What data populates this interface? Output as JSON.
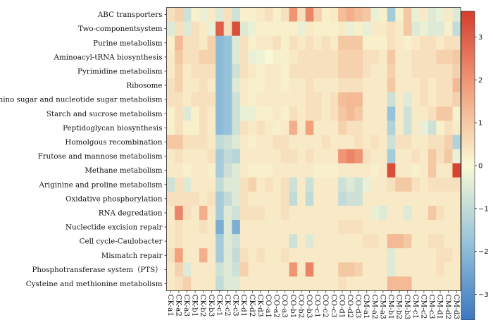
{
  "chart_data": {
    "type": "heatmap",
    "rows": [
      "ABC transporters",
      "Two-componentsystem",
      "Purine metabolism",
      "Aminoacyl-tRNA biosynthesis",
      "Pyrimidine metabolism",
      "Ribosome",
      "Amino sugar and nucleotide sugar metabolism",
      "Starch and sucrose metabolism",
      "Peptidoglycan biosynthesis",
      "Homolgous recombination",
      "Frutose and mannose metabolism",
      "Methane metabolism",
      "Ariginine and proline metabolism",
      "Oxidative phosphorylation",
      "RNA degredation",
      "Nuclectide excision repair",
      "Cell cycle-Caulobacter",
      "Mismatch repair",
      "Phosphotransferase system（PTS）",
      "Cysteine and methionine metabolism"
    ],
    "columns": [
      "CK-a1",
      "CK-a2",
      "CK-a3",
      "CK-b1",
      "CK-b2",
      "CK-b3",
      "CK-c1",
      "CK-c2",
      "CK-c3",
      "CK-d1",
      "CK-d2",
      "CK-d3",
      "CO-a1",
      "CO-a2",
      "CO-a3",
      "CO-b1",
      "CO-b2",
      "CO-b3",
      "CO-c1",
      "CO-c2",
      "CO-c3",
      "CO-d1",
      "CO-d2",
      "CO-d3",
      "CM-a1",
      "CM-a2",
      "CM-a3",
      "CM-b1",
      "CM-b2",
      "CM-b3",
      "CM-c1",
      "CM-c2",
      "CM-c3",
      "CM-d1",
      "CM-d2",
      "CM-d3"
    ],
    "values": [
      [
        0.5,
        0.8,
        -0.8,
        0.2,
        -0.3,
        0.3,
        -0.5,
        0.5,
        -0.8,
        0.2,
        0.2,
        0.3,
        0.5,
        0.2,
        0.5,
        2.0,
        0.5,
        2.3,
        0.8,
        0.2,
        0.3,
        1.2,
        1.5,
        1.2,
        1.0,
        -0.3,
        0.2,
        -1.5,
        0.2,
        1.0,
        -0.3,
        0.3,
        -0.5,
        -0.3,
        0.3,
        -0.5
      ],
      [
        -0.5,
        0.5,
        -0.5,
        0.5,
        0.3,
        -0.3,
        3.0,
        0.5,
        3.3,
        -0.5,
        -0.3,
        0.2,
        0.2,
        0.2,
        0.2,
        0.2,
        -0.3,
        0.3,
        0.2,
        0.2,
        0.2,
        0.3,
        -0.3,
        0.2,
        -0.3,
        0.3,
        0.3,
        0.5,
        0.3,
        1.0,
        -0.5,
        -0.3,
        -0.5,
        -0.5,
        0.2,
        -1.0
      ],
      [
        0.2,
        1.3,
        0.5,
        0.5,
        0.3,
        0.8,
        -2.0,
        -1.8,
        -0.5,
        0.5,
        0.2,
        0.3,
        0.3,
        0.5,
        0.2,
        0.5,
        0.3,
        0.5,
        0.3,
        0.5,
        0.3,
        1.0,
        1.0,
        1.0,
        0.2,
        0.2,
        0.2,
        0.5,
        0.3,
        0.2,
        0.3,
        0.5,
        0.5,
        0.3,
        0.5,
        0.5
      ],
      [
        0.3,
        1.0,
        0.5,
        0.5,
        0.8,
        0.8,
        -2.0,
        -1.8,
        -0.5,
        0.5,
        -0.3,
        -0.2,
        0.0,
        0.2,
        0.2,
        0.3,
        0.5,
        0.5,
        0.5,
        0.5,
        0.5,
        0.8,
        0.8,
        0.8,
        0.5,
        0.5,
        0.3,
        1.0,
        0.3,
        0.3,
        0.5,
        0.5,
        0.5,
        0.8,
        0.8,
        1.0
      ],
      [
        0.3,
        0.8,
        0.3,
        0.5,
        0.5,
        0.5,
        -2.0,
        -1.8,
        -0.8,
        0.5,
        0.3,
        0.2,
        0.3,
        0.3,
        0.2,
        0.5,
        0.5,
        0.5,
        0.5,
        0.5,
        0.5,
        0.8,
        0.8,
        0.8,
        0.5,
        0.3,
        0.3,
        0.8,
        0.3,
        0.3,
        0.5,
        0.5,
        0.5,
        0.5,
        0.5,
        0.8
      ],
      [
        0.5,
        0.8,
        0.3,
        0.3,
        0.5,
        0.3,
        -2.0,
        -1.8,
        -0.5,
        0.3,
        0.2,
        0.2,
        0.3,
        0.3,
        0.2,
        0.3,
        0.3,
        0.5,
        0.3,
        0.3,
        0.3,
        0.5,
        0.5,
        0.5,
        0.3,
        0.3,
        0.3,
        1.0,
        0.3,
        0.3,
        0.3,
        0.5,
        0.3,
        0.5,
        0.5,
        1.3
      ],
      [
        0.5,
        0.5,
        0.3,
        0.5,
        0.5,
        0.5,
        -2.0,
        -1.8,
        -0.8,
        0.3,
        0.2,
        0.3,
        0.3,
        0.3,
        0.3,
        0.3,
        0.3,
        0.5,
        0.5,
        0.3,
        0.5,
        1.2,
        1.3,
        1.3,
        0.3,
        0.3,
        0.3,
        -0.8,
        0.3,
        -0.5,
        0.3,
        0.5,
        0.3,
        0.5,
        0.5,
        0.8
      ],
      [
        0.2,
        0.5,
        -0.5,
        0.2,
        0.5,
        0.3,
        -2.0,
        -1.8,
        -0.8,
        -0.3,
        -0.3,
        0.2,
        0.2,
        0.3,
        0.2,
        0.5,
        0.3,
        0.5,
        0.5,
        0.3,
        0.5,
        1.0,
        1.3,
        1.0,
        0.3,
        0.3,
        0.3,
        -1.8,
        0.3,
        -0.8,
        0.3,
        0.3,
        0.5,
        1.0,
        1.0,
        0.2
      ],
      [
        0.2,
        0.5,
        0.2,
        0.2,
        0.5,
        0.3,
        -2.0,
        -1.8,
        -0.8,
        0.5,
        0.3,
        0.5,
        0.3,
        0.2,
        0.3,
        1.5,
        0.3,
        1.8,
        0.3,
        0.3,
        0.3,
        0.8,
        0.5,
        0.5,
        0.3,
        0.3,
        0.3,
        -1.3,
        0.3,
        -0.8,
        0.3,
        -0.3,
        -0.8,
        0.2,
        0.5,
        0.3
      ],
      [
        1.0,
        1.0,
        0.5,
        0.5,
        0.5,
        0.3,
        -1.0,
        -0.8,
        -0.5,
        0.3,
        0.2,
        0.3,
        0.3,
        0.5,
        0.5,
        0.3,
        0.3,
        0.3,
        0.3,
        0.5,
        0.3,
        0.3,
        0.3,
        0.5,
        0.3,
        0.5,
        0.3,
        -0.8,
        0.5,
        0.5,
        0.3,
        0.3,
        0.5,
        0.5,
        0.8,
        -1.3
      ],
      [
        0.3,
        0.5,
        0.3,
        0.3,
        0.3,
        0.5,
        -1.5,
        -1.0,
        -1.2,
        0.3,
        0.3,
        0.3,
        0.3,
        0.3,
        0.5,
        0.5,
        0.3,
        0.5,
        0.3,
        0.3,
        0.3,
        2.0,
        2.3,
        2.0,
        0.5,
        0.3,
        0.3,
        -1.5,
        0.3,
        0.3,
        0.5,
        0.3,
        1.0,
        0.5,
        1.0,
        -0.3
      ],
      [
        0.3,
        0.3,
        0.2,
        0.3,
        0.3,
        0.2,
        -1.5,
        -0.8,
        -0.5,
        0.3,
        0.2,
        0.2,
        0.2,
        0.3,
        0.3,
        0.3,
        0.3,
        0.3,
        0.2,
        0.2,
        0.2,
        0.3,
        0.3,
        0.3,
        0.3,
        0.2,
        0.3,
        3.3,
        0.3,
        0.3,
        0.2,
        0.3,
        1.0,
        0.3,
        0.3,
        3.5
      ],
      [
        -0.8,
        0.5,
        -0.5,
        0.3,
        0.3,
        0.3,
        -1.0,
        -0.5,
        -0.5,
        0.5,
        0.8,
        0.3,
        0.5,
        0.3,
        0.5,
        -0.8,
        0.3,
        -0.8,
        0.3,
        0.3,
        0.3,
        -0.8,
        -0.5,
        -0.8,
        -0.3,
        0.3,
        0.3,
        0.5,
        1.0,
        1.0,
        0.5,
        0.3,
        0.5,
        0.5,
        0.5,
        0.5
      ],
      [
        0.5,
        0.5,
        0.5,
        0.5,
        0.3,
        0.5,
        -1.5,
        -1.0,
        -0.5,
        0.5,
        0.3,
        0.3,
        0.3,
        0.3,
        0.5,
        -1.0,
        0.3,
        -1.0,
        0.3,
        0.3,
        0.3,
        -1.0,
        -0.8,
        -0.8,
        0.3,
        0.3,
        0.3,
        0.3,
        0.3,
        0.3,
        0.3,
        0.3,
        0.3,
        0.3,
        0.3,
        0.3
      ],
      [
        0.3,
        2.3,
        0.5,
        0.3,
        1.5,
        0.3,
        -1.5,
        -0.5,
        -0.8,
        0.5,
        0.5,
        0.5,
        0.3,
        0.3,
        0.5,
        0.3,
        0.3,
        0.3,
        0.3,
        0.3,
        0.3,
        0.3,
        0.3,
        0.3,
        0.3,
        -0.3,
        -0.5,
        0.3,
        0.3,
        -0.5,
        0.3,
        0.3,
        1.0,
        0.5,
        0.3,
        0.3
      ],
      [
        0.3,
        0.5,
        0.3,
        0.3,
        0.5,
        0.3,
        -2.3,
        -0.5,
        -2.3,
        0.3,
        0.3,
        0.3,
        0.3,
        0.3,
        0.3,
        0.3,
        0.3,
        0.3,
        0.3,
        0.3,
        0.3,
        0.5,
        0.5,
        0.5,
        0.3,
        0.3,
        0.3,
        0.3,
        0.3,
        0.3,
        0.3,
        0.3,
        0.3,
        0.3,
        0.3,
        0.3
      ],
      [
        0.3,
        0.5,
        0.3,
        0.3,
        0.3,
        0.3,
        -1.5,
        -0.5,
        -0.8,
        0.3,
        0.3,
        0.3,
        0.3,
        0.3,
        0.3,
        -0.8,
        0.3,
        -0.5,
        0.3,
        0.3,
        0.3,
        0.3,
        0.3,
        0.3,
        0.5,
        0.5,
        0.3,
        1.3,
        1.3,
        1.0,
        0.3,
        0.3,
        0.5,
        0.5,
        0.3,
        0.3
      ],
      [
        0.5,
        1.8,
        0.3,
        0.3,
        1.5,
        0.3,
        -1.5,
        -0.5,
        -1.0,
        0.5,
        0.3,
        0.5,
        0.3,
        0.3,
        0.5,
        0.3,
        0.3,
        0.3,
        0.3,
        0.3,
        0.3,
        0.3,
        0.3,
        0.3,
        0.3,
        0.3,
        0.3,
        -0.5,
        0.3,
        0.3,
        0.3,
        0.3,
        0.3,
        0.5,
        0.5,
        0.3
      ],
      [
        0.3,
        0.8,
        -0.5,
        0.3,
        0.3,
        0.3,
        -0.8,
        -0.5,
        -0.8,
        0.8,
        0.3,
        0.3,
        0.3,
        0.3,
        0.3,
        2.0,
        0.3,
        2.3,
        0.3,
        0.3,
        0.3,
        1.0,
        1.0,
        0.8,
        0.3,
        0.3,
        0.3,
        -0.5,
        0.3,
        0.3,
        0.3,
        0.3,
        0.3,
        0.5,
        0.3,
        0.3
      ],
      [
        0.3,
        0.5,
        0.8,
        0.3,
        0.3,
        0.3,
        -1.0,
        -0.5,
        -0.5,
        0.3,
        0.3,
        0.3,
        0.3,
        0.3,
        0.3,
        0.3,
        0.3,
        0.3,
        0.3,
        0.3,
        0.3,
        0.5,
        0.3,
        0.3,
        0.3,
        0.3,
        0.3,
        1.3,
        1.3,
        1.3,
        0.3,
        0.3,
        0.3,
        0.3,
        0.3,
        0.3
      ]
    ],
    "colorbar": {
      "range": [
        -3.6,
        3.6
      ],
      "ticks": [
        "3",
        "2",
        "1",
        "0",
        "−1",
        "−2",
        "−3"
      ],
      "tick_values": [
        3,
        2,
        1,
        0,
        -1,
        -2,
        -3
      ],
      "colors": [
        "#3a78bf",
        "#96c3da",
        "#f9f9d5",
        "#f2a07d",
        "#d43d2c"
      ]
    }
  }
}
